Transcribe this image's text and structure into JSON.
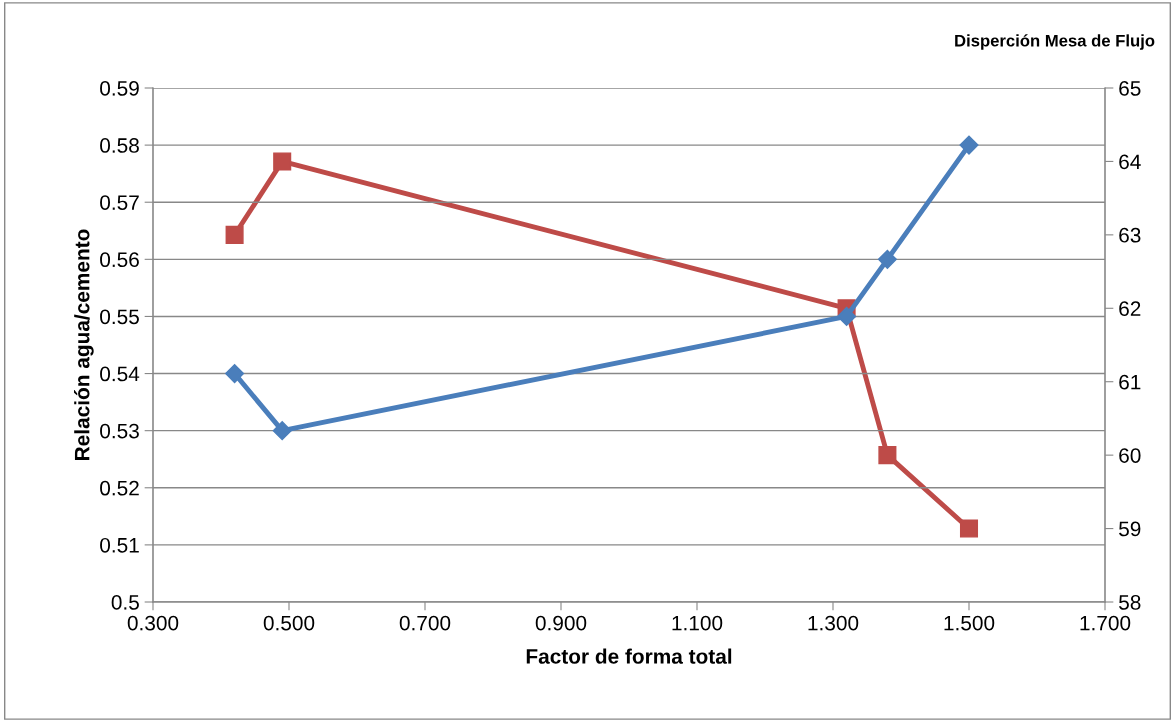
{
  "chart_data": {
    "type": "line",
    "xlabel": "Factor de forma total",
    "ylabel": "Relación agua/cemento",
    "y2label": "Disperción Mesa de Flujo",
    "x": [
      0.42,
      0.49,
      1.32,
      1.38,
      1.5
    ],
    "series": [
      {
        "color": "#4a7ebb",
        "marker": "diamond",
        "values": [
          0.54,
          0.53,
          0.55,
          0.56,
          0.58
        ]
      },
      {
        "color": "#be4b48",
        "marker": "square",
        "axis": "y2",
        "values": [
          63,
          64,
          62,
          60,
          59
        ]
      }
    ],
    "xlim": [
      0.3,
      1.7
    ],
    "xticks": [
      {
        "value": 0.3,
        "label": "0.300"
      },
      {
        "value": 0.5,
        "label": "0.500"
      },
      {
        "value": 0.7,
        "label": "0.700"
      },
      {
        "value": 0.9,
        "label": "0.900"
      },
      {
        "value": 1.1,
        "label": "1.100"
      },
      {
        "value": 1.3,
        "label": "1.300"
      },
      {
        "value": 1.5,
        "label": "1.500"
      },
      {
        "value": 1.7,
        "label": "1.700"
      }
    ],
    "ylim": [
      0.5,
      0.59
    ],
    "yticks": [
      0.5,
      0.51,
      0.52,
      0.53,
      0.54,
      0.55,
      0.56,
      0.57,
      0.58,
      0.59
    ],
    "y2lim": [
      58,
      65
    ],
    "y2ticks": [
      58,
      59,
      60,
      61,
      62,
      63,
      64,
      65
    ],
    "grid": "y",
    "legend": false,
    "line_style": "solid"
  }
}
